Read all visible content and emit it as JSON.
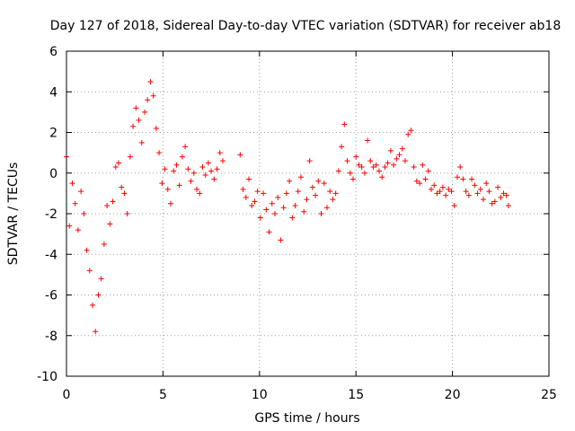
{
  "chart_data": {
    "type": "scatter",
    "title": "Day 127 of 2018, Sidereal Day-to-day VTEC variation (SDTVAR) for receiver ab18",
    "xlabel": "GPS time / hours",
    "ylabel": "SDTVAR / TECUs",
    "xlim": [
      0,
      25
    ],
    "ylim": [
      -10,
      6
    ],
    "xticks": [
      0,
      5,
      10,
      15,
      20,
      25
    ],
    "yticks": [
      -10,
      -8,
      -6,
      -4,
      -2,
      0,
      2,
      4,
      6
    ],
    "xtick_labels": [
      "0",
      "5",
      "10",
      "15",
      "20",
      "25"
    ],
    "ytick_labels": [
      "-10",
      "-8",
      "-6",
      "-4",
      "-2",
      "0",
      "2",
      "4",
      "6"
    ],
    "grid": true,
    "marker": "+",
    "series": [
      {
        "name": "SDTVAR",
        "color": "#ff0000",
        "x": [
          0.0,
          0.15,
          0.3,
          0.45,
          0.6,
          0.75,
          0.9,
          1.05,
          1.2,
          1.35,
          1.5,
          1.65,
          1.8,
          1.95,
          2.1,
          2.25,
          2.4,
          2.55,
          2.7,
          2.85,
          3.0,
          3.15,
          3.3,
          3.45,
          3.6,
          3.75,
          3.9,
          4.05,
          4.2,
          4.35,
          4.5,
          4.65,
          4.8,
          4.95,
          5.1,
          5.25,
          5.4,
          5.55,
          5.7,
          5.85,
          6.0,
          6.15,
          6.3,
          6.45,
          6.6,
          6.75,
          6.9,
          7.05,
          7.2,
          7.35,
          7.5,
          7.65,
          7.8,
          7.95,
          8.1,
          9.0,
          9.15,
          9.3,
          9.45,
          9.6,
          9.75,
          9.9,
          10.05,
          10.2,
          10.35,
          10.5,
          10.65,
          10.8,
          10.95,
          11.1,
          11.25,
          11.4,
          11.55,
          11.7,
          11.85,
          12.0,
          12.15,
          12.3,
          12.45,
          12.6,
          12.75,
          12.9,
          13.05,
          13.2,
          13.35,
          13.5,
          13.65,
          13.8,
          13.95,
          14.1,
          14.25,
          14.4,
          14.55,
          14.7,
          14.85,
          15.0,
          15.15,
          15.3,
          15.45,
          15.6,
          15.75,
          15.9,
          16.05,
          16.2,
          16.35,
          16.5,
          16.65,
          16.8,
          16.95,
          17.1,
          17.25,
          17.4,
          17.55,
          17.7,
          17.85,
          18.0,
          18.15,
          18.3,
          18.45,
          18.6,
          18.75,
          18.9,
          19.05,
          19.2,
          19.35,
          19.5,
          19.65,
          19.8,
          19.95,
          20.1,
          20.25,
          20.4,
          20.55,
          20.7,
          20.85,
          21.0,
          21.15,
          21.3,
          21.45,
          21.6,
          21.75,
          21.9,
          22.05,
          22.2,
          22.35,
          22.5,
          22.65,
          22.8,
          22.9
        ],
        "y": [
          0.8,
          -2.6,
          -0.5,
          -1.5,
          -2.8,
          -0.9,
          -2.0,
          -3.8,
          -4.8,
          -6.5,
          -7.8,
          -6.0,
          -5.2,
          -3.5,
          -1.6,
          -2.5,
          -1.4,
          0.3,
          0.5,
          -0.7,
          -1.0,
          -2.0,
          0.8,
          2.3,
          3.2,
          2.6,
          1.5,
          3.0,
          3.6,
          4.5,
          3.8,
          2.2,
          1.0,
          -0.5,
          0.2,
          -0.8,
          -1.5,
          0.1,
          0.4,
          -0.6,
          0.8,
          1.3,
          0.2,
          -0.4,
          0.0,
          -0.8,
          -1.0,
          0.3,
          -0.1,
          0.5,
          0.1,
          -0.3,
          0.2,
          1.0,
          0.6,
          0.9,
          -0.8,
          -1.2,
          -0.3,
          -1.6,
          -1.4,
          -0.9,
          -2.2,
          -1.0,
          -1.8,
          -2.9,
          -1.5,
          -2.0,
          -1.2,
          -3.3,
          -1.7,
          -1.0,
          -0.4,
          -2.2,
          -1.6,
          -0.9,
          -0.2,
          -1.9,
          -1.3,
          0.6,
          -0.7,
          -1.1,
          -0.4,
          -2.0,
          -0.5,
          -1.7,
          -0.9,
          -1.3,
          -1.0,
          0.1,
          1.3,
          2.4,
          0.6,
          0.0,
          -0.3,
          0.8,
          0.4,
          0.3,
          0.0,
          1.6,
          0.6,
          0.3,
          0.4,
          0.1,
          -0.2,
          0.3,
          0.5,
          1.1,
          0.4,
          0.7,
          0.9,
          1.2,
          0.6,
          1.9,
          2.1,
          0.3,
          -0.4,
          -0.5,
          0.4,
          -0.3,
          0.1,
          -0.8,
          -0.6,
          -1.0,
          -0.9,
          -0.7,
          -1.1,
          -0.8,
          -0.9,
          -1.6,
          -0.2,
          0.3,
          -0.3,
          -0.9,
          -1.1,
          -0.3,
          -0.6,
          -1.0,
          -0.8,
          -1.3,
          -0.5,
          -0.9,
          -1.5,
          -1.4,
          -0.7,
          -1.2,
          -1.0,
          -1.1,
          -1.6
        ]
      }
    ]
  }
}
